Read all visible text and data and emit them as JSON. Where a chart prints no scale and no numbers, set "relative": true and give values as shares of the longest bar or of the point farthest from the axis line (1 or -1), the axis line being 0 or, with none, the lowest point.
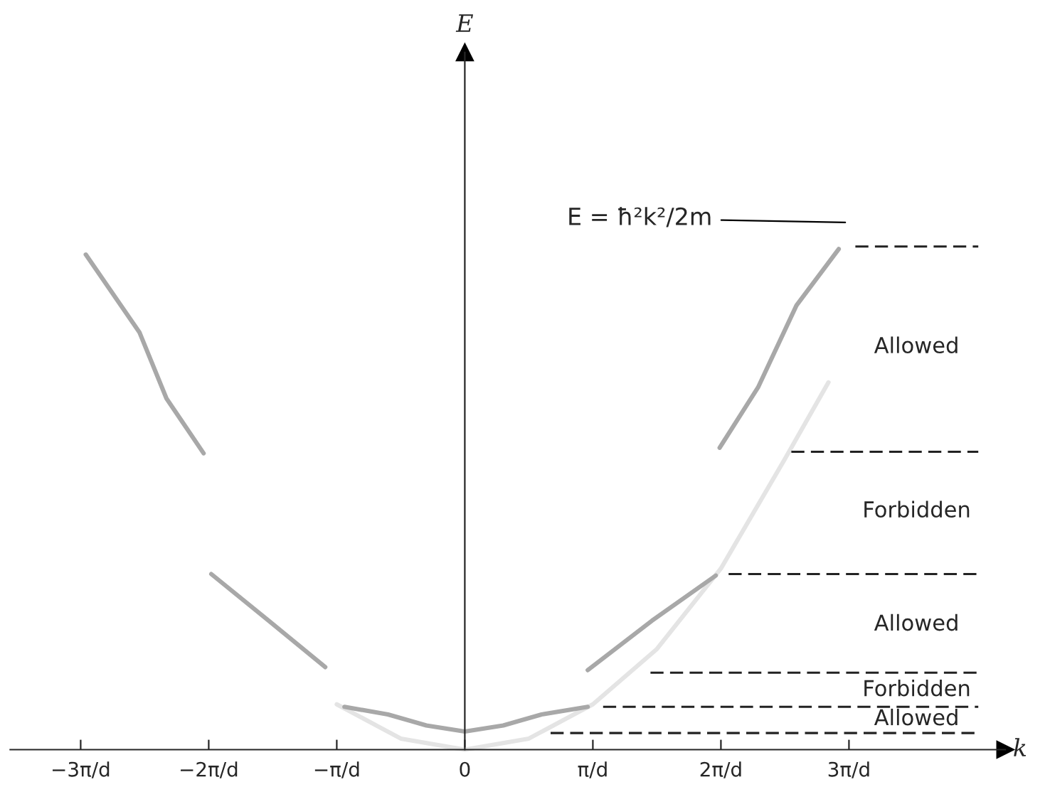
{
  "chart_data": {
    "type": "line",
    "relative": true,
    "xlabel": "k",
    "xlim": [
      -3.63,
      4.57
    ],
    "xticks": [
      {
        "value": -3,
        "label": "−3π/d"
      },
      {
        "value": -2,
        "label": "−2π/d"
      },
      {
        "value": -1,
        "label": "−π/d"
      },
      0,
      {
        "value": 1,
        "label": "π/d"
      },
      {
        "value": 2,
        "label": "2π/d"
      },
      {
        "value": 3,
        "label": "3π/d"
      }
    ],
    "grid": false,
    "legend": false,
    "marker": "none",
    "series": [
      {
        "color": "#e4e4e4",
        "line_style": "solid",
        "x": [
          -1,
          -0.5,
          0,
          0.5,
          1,
          1.5,
          2,
          2.5,
          2.84
        ],
        "values": [
          0.09,
          0.022,
          0,
          0.022,
          0.09,
          0.2,
          0.36,
          0.578,
          0.73
        ]
      },
      {
        "color": "#a8a8a8",
        "line_style": "solid",
        "x": [
          -0.94,
          -0.6,
          -0.3,
          0,
          0.3,
          0.6,
          0.96
        ],
        "values": [
          0.085,
          0.07,
          0.048,
          0.036,
          0.048,
          0.07,
          0.085
        ]
      },
      {
        "color": "#a8a8a8",
        "line_style": "solid",
        "x": [
          -1.98,
          -1.53,
          -1.09
        ],
        "values": [
          0.349,
          0.256,
          0.164
        ]
      },
      {
        "color": "#a8a8a8",
        "line_style": "solid",
        "x": [
          0.96,
          1.46,
          1.96
        ],
        "values": [
          0.158,
          0.256,
          0.346
        ]
      },
      {
        "color": "#a8a8a8",
        "line_style": "solid",
        "x": [
          -2.96,
          -2.54,
          -2.33,
          -2.04
        ],
        "values": [
          0.984,
          0.829,
          0.698,
          0.589
        ]
      },
      {
        "color": "#a8a8a8",
        "line_style": "solid",
        "x": [
          1.99,
          2.29,
          2.59,
          2.92
        ],
        "values": [
          0.6,
          0.72,
          0.883,
          0.995
        ]
      },
      {
        "color": "#222222",
        "line_style": "dashed",
        "x": [
          0.67,
          4.01
        ],
        "values": [
          0.033,
          0.033
        ]
      },
      {
        "color": "#222222",
        "line_style": "dashed",
        "x": [
          1.08,
          4.01
        ],
        "values": [
          0.085,
          0.085
        ]
      },
      {
        "color": "#222222",
        "line_style": "dashed",
        "x": [
          1.45,
          4.01
        ],
        "values": [
          0.153,
          0.153
        ]
      },
      {
        "color": "#222222",
        "line_style": "dashed",
        "x": [
          2.06,
          4.01
        ],
        "values": [
          0.349,
          0.349
        ]
      },
      {
        "color": "#222222",
        "line_style": "dashed",
        "x": [
          2.55,
          4.01
        ],
        "values": [
          0.592,
          0.592
        ]
      },
      {
        "color": "#222222",
        "line_style": "dashed",
        "x": [
          3.05,
          4.01
        ],
        "values": [
          1.0,
          1.0
        ]
      }
    ],
    "annotations": [
      "E",
      "Allowed",
      "Forbidden",
      "Allowed",
      "Forbidden",
      "Allowed",
      "E = ħ²k²/2m"
    ]
  }
}
